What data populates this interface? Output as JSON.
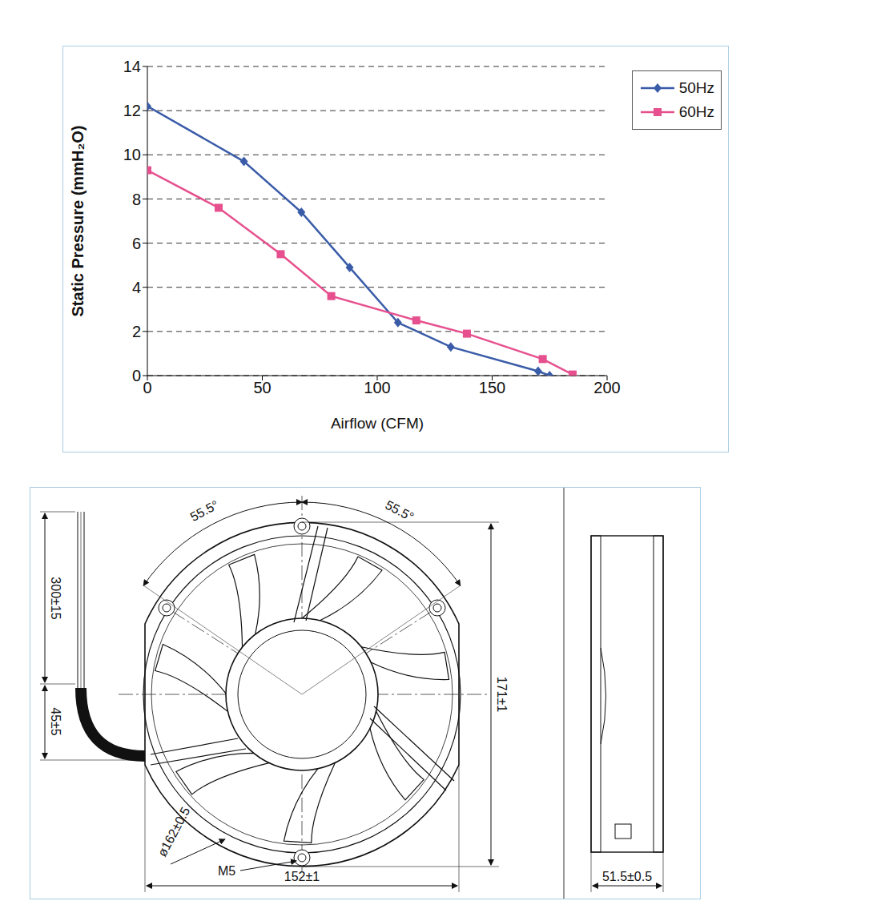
{
  "chart_data": {
    "type": "line",
    "x_label": "Airflow (CFM)",
    "y_label": "Static Pressure (mmH₂O)",
    "xlim": [
      0,
      200
    ],
    "xticks": [
      0,
      50,
      100,
      150,
      200
    ],
    "ylim": [
      0,
      14
    ],
    "yticks": [
      0,
      2,
      4,
      6,
      8,
      10,
      12,
      14
    ],
    "grid": true,
    "legend": "upper right",
    "series": [
      {
        "name": "50Hz",
        "color": "#3a5ca8",
        "marker": "diamond",
        "line_style": "solid",
        "x": [
          0,
          42,
          67,
          88,
          109,
          132,
          170,
          175
        ],
        "values": [
          12.2,
          9.7,
          7.4,
          4.9,
          2.4,
          1.3,
          0.2,
          0
        ]
      },
      {
        "name": "60Hz",
        "color": "#e6508e",
        "marker": "square",
        "line_style": "solid",
        "x": [
          0,
          31,
          58,
          80,
          117,
          139,
          172,
          185
        ],
        "values": [
          9.3,
          7.6,
          5.5,
          3.6,
          2.5,
          1.9,
          0.75,
          0.05
        ]
      }
    ]
  },
  "drawing": {
    "front_view": {
      "angles": [
        "55.5°",
        "55.5°"
      ],
      "height": "171±1",
      "width": "152±1",
      "diameter": "ø162±0.5",
      "thread": "M5"
    },
    "lead_wire": {
      "length": "300±15",
      "bend": "45±5"
    },
    "side_view": {
      "depth": "51.5±0.5"
    }
  }
}
